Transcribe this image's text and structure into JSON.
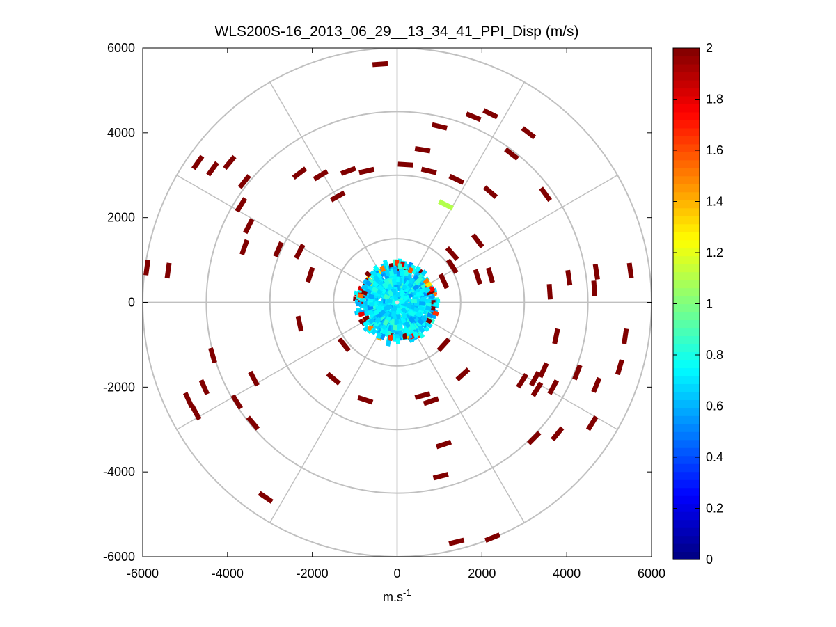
{
  "chart_data": {
    "type": "ppi-polar-scatter",
    "title": "WLS200S-16_2013_06_29__13_34_41_PPI_Disp (m/s)",
    "xlabel": "m.s",
    "xlabel_superscript": "-1",
    "ylabel": "",
    "xlim": [
      -6000,
      6000
    ],
    "ylim": [
      -6000,
      6000
    ],
    "x_ticks": [
      "-6000",
      "-4000",
      "-2000",
      "0",
      "2000",
      "4000",
      "6000"
    ],
    "y_ticks": [
      "6000",
      "4000",
      "2000",
      "0",
      "-2000",
      "-4000",
      "-6000"
    ],
    "x_tick_values": [
      -6000,
      -4000,
      -2000,
      0,
      2000,
      4000,
      6000
    ],
    "y_tick_values": [
      6000,
      4000,
      2000,
      0,
      -2000,
      -4000,
      -6000
    ],
    "polar_grid": {
      "ring_radii": [
        1500,
        3000,
        4500,
        6000
      ],
      "spoke_angles_deg": [
        0,
        30,
        60,
        90,
        120,
        150,
        180,
        210,
        240,
        270,
        300,
        330
      ]
    },
    "colorbar": {
      "colormap": "jet",
      "min": 0,
      "max": 2,
      "ticks": [
        "0",
        "0.2",
        "0.4",
        "0.6",
        "0.8",
        "1",
        "1.2",
        "1.4",
        "1.6",
        "1.8",
        "2"
      ],
      "tick_values": [
        0,
        0.2,
        0.4,
        0.6,
        0.8,
        1,
        1.2,
        1.4,
        1.6,
        1.8,
        2
      ]
    },
    "core_region": {
      "description": "dense near-field returns, mostly 0.6-0.9 m/s",
      "max_range_m": 1000,
      "value_range": [
        0.5,
        1.3
      ]
    },
    "points": [
      {
        "x": -400,
        "y": 5620,
        "v": 2
      },
      {
        "x": 1800,
        "y": 4380,
        "v": 2
      },
      {
        "x": 2200,
        "y": 4450,
        "v": 2
      },
      {
        "x": 1000,
        "y": 4150,
        "v": 2
      },
      {
        "x": 3100,
        "y": 4000,
        "v": 2
      },
      {
        "x": 2700,
        "y": 3500,
        "v": 2
      },
      {
        "x": 600,
        "y": 3600,
        "v": 2
      },
      {
        "x": 200,
        "y": 3250,
        "v": 2
      },
      {
        "x": 750,
        "y": 3100,
        "v": 2
      },
      {
        "x": 1400,
        "y": 2900,
        "v": 2
      },
      {
        "x": 2200,
        "y": 2600,
        "v": 2
      },
      {
        "x": 3500,
        "y": 2550,
        "v": 2
      },
      {
        "x": 1150,
        "y": 2300,
        "v": 1.1
      },
      {
        "x": 1900,
        "y": 1450,
        "v": 2
      },
      {
        "x": 1300,
        "y": 1150,
        "v": 2
      },
      {
        "x": 4700,
        "y": 720,
        "v": 2
      },
      {
        "x": 5500,
        "y": 750,
        "v": 2
      },
      {
        "x": 4050,
        "y": 580,
        "v": 2
      },
      {
        "x": 4650,
        "y": 330,
        "v": 2
      },
      {
        "x": 3600,
        "y": 250,
        "v": 2
      },
      {
        "x": 2200,
        "y": 640,
        "v": 2
      },
      {
        "x": 1900,
        "y": 600,
        "v": 2
      },
      {
        "x": 1300,
        "y": 850,
        "v": 2
      },
      {
        "x": 1100,
        "y": 500,
        "v": 2
      },
      {
        "x": -4700,
        "y": 3300,
        "v": 2
      },
      {
        "x": -4350,
        "y": 3150,
        "v": 2
      },
      {
        "x": -3950,
        "y": 3300,
        "v": 2
      },
      {
        "x": -3600,
        "y": 2850,
        "v": 2
      },
      {
        "x": -3680,
        "y": 2300,
        "v": 2
      },
      {
        "x": -2300,
        "y": 3050,
        "v": 2
      },
      {
        "x": -1800,
        "y": 3000,
        "v": 2
      },
      {
        "x": -1150,
        "y": 3100,
        "v": 2
      },
      {
        "x": -720,
        "y": 3100,
        "v": 2
      },
      {
        "x": -1400,
        "y": 2500,
        "v": 2
      },
      {
        "x": -3500,
        "y": 1800,
        "v": 2
      },
      {
        "x": -3600,
        "y": 1300,
        "v": 2
      },
      {
        "x": -2800,
        "y": 1250,
        "v": 2
      },
      {
        "x": -2300,
        "y": 1200,
        "v": 2
      },
      {
        "x": -5900,
        "y": 820,
        "v": 2
      },
      {
        "x": -5400,
        "y": 750,
        "v": 2
      },
      {
        "x": -2050,
        "y": 650,
        "v": 2
      },
      {
        "x": -2300,
        "y": -500,
        "v": 2
      },
      {
        "x": -4350,
        "y": -1250,
        "v": 2
      },
      {
        "x": -4550,
        "y": -2000,
        "v": 2
      },
      {
        "x": -3380,
        "y": -1800,
        "v": 2
      },
      {
        "x": -4920,
        "y": -2300,
        "v": 2
      },
      {
        "x": -4750,
        "y": -2600,
        "v": 2
      },
      {
        "x": -3780,
        "y": -2350,
        "v": 2
      },
      {
        "x": -3400,
        "y": -2850,
        "v": 2
      },
      {
        "x": -3100,
        "y": -4600,
        "v": 2
      },
      {
        "x": -1500,
        "y": -1800,
        "v": 2
      },
      {
        "x": -750,
        "y": -2300,
        "v": 2
      },
      {
        "x": 600,
        "y": -2200,
        "v": 2
      },
      {
        "x": 800,
        "y": -2330,
        "v": 2
      },
      {
        "x": 1100,
        "y": -3350,
        "v": 2
      },
      {
        "x": 1030,
        "y": -4100,
        "v": 2
      },
      {
        "x": 1400,
        "y": -5650,
        "v": 2
      },
      {
        "x": 2250,
        "y": -5550,
        "v": 2
      },
      {
        "x": 1550,
        "y": -1700,
        "v": 2
      },
      {
        "x": 2950,
        "y": -1850,
        "v": 2
      },
      {
        "x": 3250,
        "y": -1800,
        "v": 2
      },
      {
        "x": 3450,
        "y": -1600,
        "v": 2
      },
      {
        "x": 3680,
        "y": -2000,
        "v": 2
      },
      {
        "x": 3300,
        "y": -2050,
        "v": 2
      },
      {
        "x": 4250,
        "y": -1650,
        "v": 2
      },
      {
        "x": 5250,
        "y": -1530,
        "v": 2
      },
      {
        "x": 4700,
        "y": -1950,
        "v": 2
      },
      {
        "x": 5380,
        "y": -800,
        "v": 2
      },
      {
        "x": 3750,
        "y": -800,
        "v": 2
      },
      {
        "x": 4600,
        "y": -2850,
        "v": 2
      },
      {
        "x": 3780,
        "y": -3100,
        "v": 2
      },
      {
        "x": 3230,
        "y": -3200,
        "v": 2
      },
      {
        "x": -1250,
        "y": -1000,
        "v": 2
      },
      {
        "x": 1100,
        "y": -1000,
        "v": 2
      }
    ]
  }
}
